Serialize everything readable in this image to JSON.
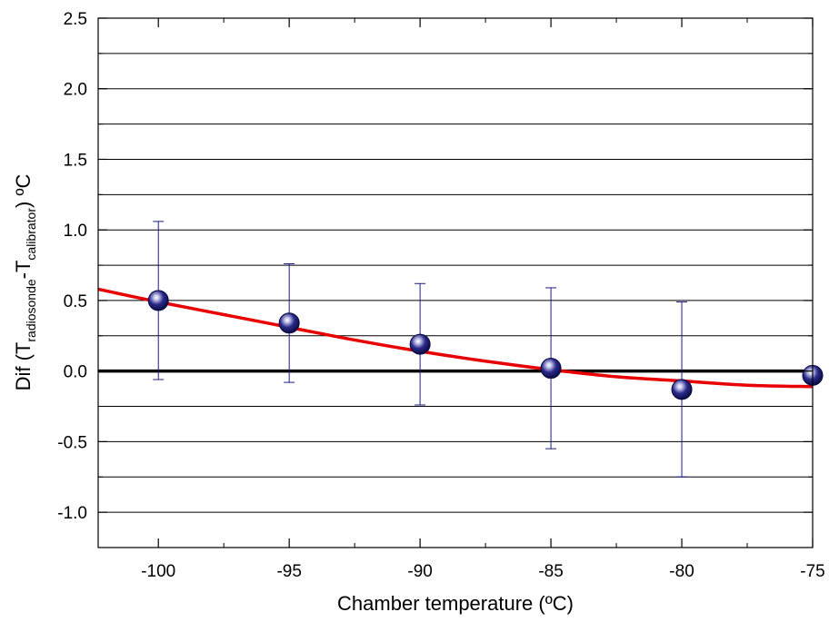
{
  "chart_data": {
    "type": "scatter",
    "title": "",
    "xlabel": "Chamber   temperature (ºC)",
    "ylabel": {
      "prefix": "Dif (T",
      "sub1": "radiosonde",
      "mid": "-T",
      "sub2": "calibrator",
      "suffix": ") ºC"
    },
    "xlim": [
      -102.3,
      -75.0
    ],
    "ylim": [
      -1.25,
      2.5
    ],
    "x_ticks": [
      -100,
      -95,
      -90,
      -85,
      -80,
      -75
    ],
    "x_tick_labels": [
      "-100",
      "-95",
      "-90",
      "-85",
      "-80",
      "-75"
    ],
    "y_ticks": [
      -1.0,
      -0.5,
      0.0,
      0.5,
      1.0,
      1.5,
      2.0,
      2.5
    ],
    "y_tick_labels": [
      "-1.0",
      "-0.5",
      "0.0",
      "0.5",
      "1.0",
      "1.5",
      "2.0",
      "2.5"
    ],
    "grid": true,
    "points": [
      {
        "x": -100,
        "y": 0.5,
        "yerr_low": -0.06,
        "yerr_high": 1.06
      },
      {
        "x": -95,
        "y": 0.34,
        "yerr_low": -0.08,
        "yerr_high": 0.76
      },
      {
        "x": -90,
        "y": 0.19,
        "yerr_low": -0.24,
        "yerr_high": 0.62
      },
      {
        "x": -85,
        "y": 0.02,
        "yerr_low": -0.55,
        "yerr_high": 0.59
      },
      {
        "x": -80,
        "y": -0.13,
        "yerr_low": -0.75,
        "yerr_high": 0.49
      },
      {
        "x": -75,
        "y": -0.03
      }
    ],
    "fit_curve": {
      "x": [
        -102.3,
        -100,
        -97.5,
        -95,
        -92.5,
        -90,
        -87.5,
        -85,
        -82.5,
        -80,
        -77.5,
        -75
      ],
      "y": [
        0.58,
        0.49,
        0.4,
        0.31,
        0.22,
        0.14,
        0.07,
        0.01,
        -0.04,
        -0.07,
        -0.1,
        -0.11
      ]
    },
    "reference_line_y": 0,
    "colors": {
      "fit": "#e80000",
      "points": "#1c1c78",
      "errorbars": "#1c1c8a",
      "zero_line": "#000000",
      "grid": "#000000"
    }
  }
}
